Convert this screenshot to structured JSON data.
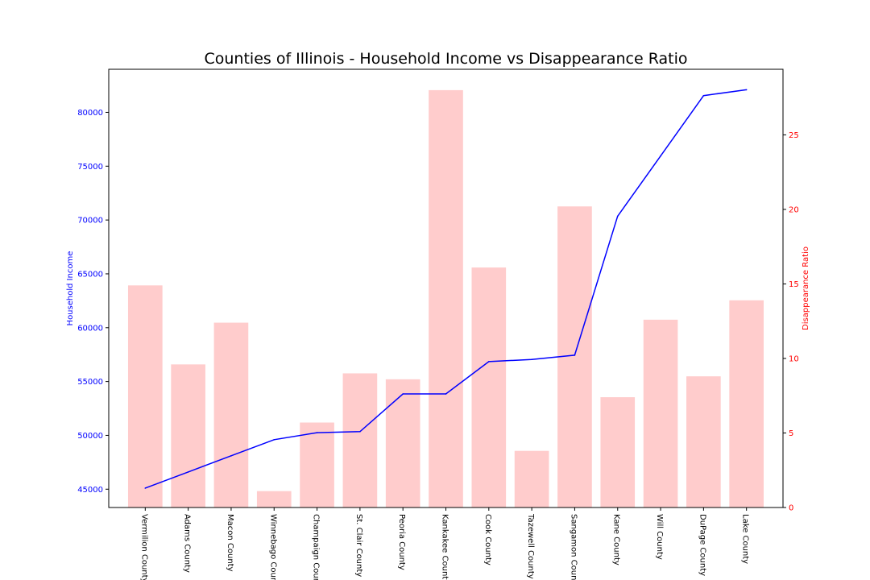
{
  "chart_data": {
    "type": "bar",
    "title": "Counties of Illinois - Household Income vs Disappearance Ratio",
    "categories": [
      "Vermilion County",
      "Adams County",
      "Macon County",
      "Winnebago County",
      "Champaign County",
      "St. Clair County",
      "Peoria County",
      "Kankakee County",
      "Cook County",
      "Tazewell County",
      "Sangamon County",
      "Kane County",
      "Will County",
      "DuPage County",
      "Lake County"
    ],
    "series": [
      {
        "name": "Disappearance Ratio",
        "type": "bar",
        "axis": "right",
        "color": "#ffcccc",
        "values": [
          14.9,
          9.6,
          12.4,
          1.1,
          5.7,
          9.0,
          8.6,
          28.0,
          16.1,
          3.8,
          20.2,
          7.4,
          12.6,
          8.8,
          13.9
        ]
      },
      {
        "name": "Household Income",
        "type": "line",
        "axis": "left",
        "color": "#0000ff",
        "values": [
          45100,
          46600,
          48100,
          49600,
          50250,
          50350,
          53850,
          53850,
          56850,
          57050,
          57450,
          70350,
          75950,
          81550,
          82100
        ]
      }
    ],
    "ylabel_left": "Household Income",
    "ylabel_right": "Disappearance Ratio",
    "ylim_left": [
      43300,
      84000
    ],
    "ylim_right": [
      0,
      29.4
    ],
    "yticks_left": [
      "45000",
      "50000",
      "55000",
      "60000",
      "65000",
      "70000",
      "75000",
      "80000"
    ],
    "yticks_right": [
      "0",
      "5",
      "10",
      "15",
      "20",
      "25"
    ],
    "left_axis_color": "#0000ff",
    "right_axis_color": "#ff0000",
    "grid": false,
    "legend": "none"
  }
}
